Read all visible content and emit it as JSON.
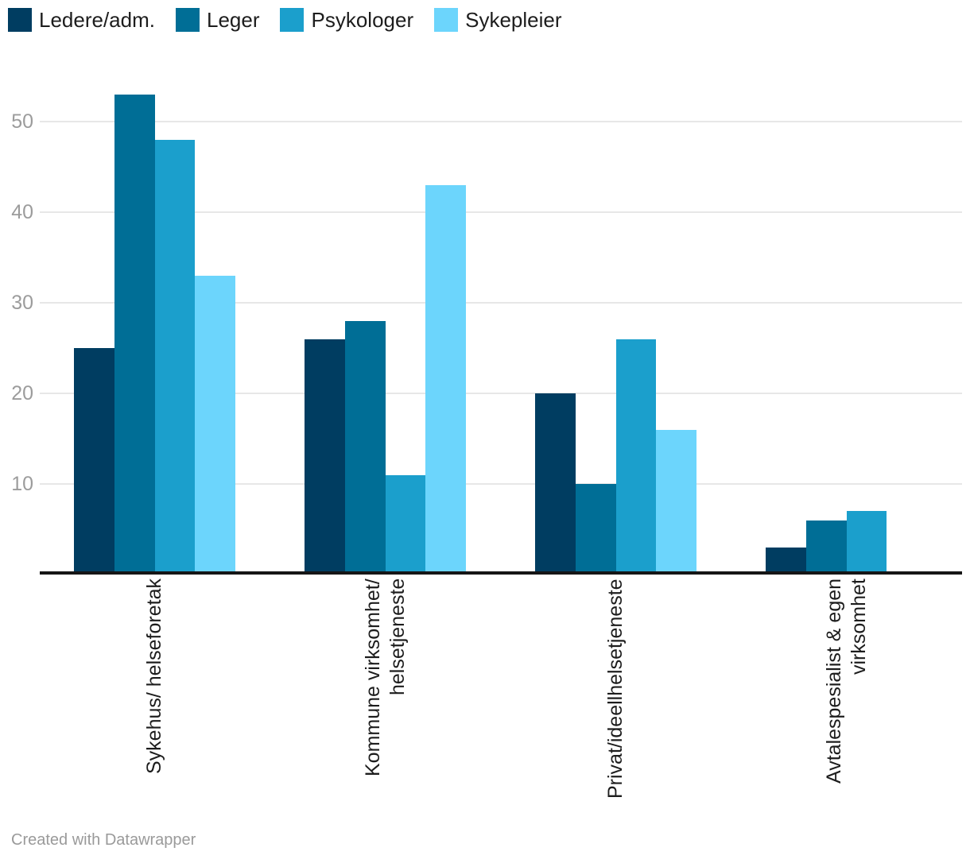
{
  "chart_data": {
    "type": "bar",
    "categories": [
      "Sykehus/ helseforetak",
      "Kommune virksomhet/\nhelsetjeneste",
      "Privat/ideellhelsetjeneste",
      "Avtalespesialist & egen\nvirksomhet"
    ],
    "series": [
      {
        "name": "Ledere/adm.",
        "color": "#003d61",
        "values": [
          25,
          26,
          20,
          3
        ]
      },
      {
        "name": "Leger",
        "color": "#006e96",
        "values": [
          53,
          28,
          10,
          6
        ]
      },
      {
        "name": "Psykologer",
        "color": "#1b9fcc",
        "values": [
          48,
          11,
          26,
          7
        ]
      },
      {
        "name": "Sykepleier",
        "color": "#6cd5fc",
        "values": [
          33,
          43,
          16,
          0
        ]
      }
    ],
    "title": "",
    "xlabel": "",
    "ylabel": "",
    "yticks": [
      10,
      20,
      30,
      40,
      50
    ],
    "ylim": [
      0,
      55
    ],
    "grid": true,
    "legend_position": "top-left",
    "gridline_color": "#e7e7e7",
    "tick_label_color": "#9c9c9c",
    "axis_line_color": "#161616"
  },
  "footer": {
    "credit": "Created with Datawrapper"
  }
}
